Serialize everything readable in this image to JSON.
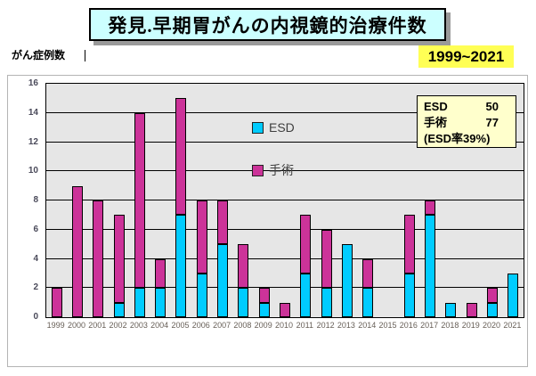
{
  "title": {
    "text": "発見.早期胃がんの内視鏡的治療件数",
    "bg_color": "#CCFFFF"
  },
  "y_axis_caption": "がん症例数",
  "year_range": "1999~2021",
  "year_range_bg": "#FFFF55",
  "legend": {
    "esd": "ESD",
    "surgery": "手術"
  },
  "summary_box": {
    "bg_color": "#FFFFCC",
    "rows": [
      {
        "label": "ESD",
        "value": "50"
      },
      {
        "label": "手術",
        "value": "77"
      }
    ],
    "note": "(ESD率39%)"
  },
  "chart_data": {
    "type": "bar",
    "stacked": true,
    "title": "発見.早期胃がんの内視鏡的治療件数",
    "ylabel": "がん症例数",
    "ylim": [
      0,
      16
    ],
    "yticks": [
      0,
      2,
      4,
      6,
      8,
      10,
      12,
      14,
      16
    ],
    "grid": true,
    "plot_bg": "#E6E6E6",
    "legend_position": "inside-top-center",
    "categories": [
      "1999",
      "2000",
      "2001",
      "2002",
      "2003",
      "2004",
      "2005",
      "2006",
      "2007",
      "2008",
      "2009",
      "2010",
      "2011",
      "2012",
      "2013",
      "2014",
      "2015",
      "2016",
      "2017",
      "2018",
      "2019",
      "2020",
      "2021"
    ],
    "series": [
      {
        "name": "ESD",
        "color": "#00CCFF",
        "values": [
          0,
          0,
          0,
          1,
          2,
          2,
          7,
          3,
          5,
          2,
          1,
          0,
          3,
          2,
          5,
          2,
          0,
          3,
          7,
          1,
          0,
          1,
          3
        ]
      },
      {
        "name": "手術",
        "color": "#CC3399",
        "values": [
          2,
          9,
          8,
          6,
          12,
          2,
          8,
          5,
          3,
          3,
          1,
          1,
          4,
          4,
          0,
          2,
          0,
          4,
          1,
          0,
          1,
          1,
          0
        ]
      }
    ],
    "totals": [
      2,
      9,
      8,
      7,
      14,
      4,
      15,
      8,
      8,
      5,
      2,
      1,
      7,
      6,
      5,
      4,
      0,
      7,
      8,
      1,
      1,
      2,
      3
    ]
  }
}
